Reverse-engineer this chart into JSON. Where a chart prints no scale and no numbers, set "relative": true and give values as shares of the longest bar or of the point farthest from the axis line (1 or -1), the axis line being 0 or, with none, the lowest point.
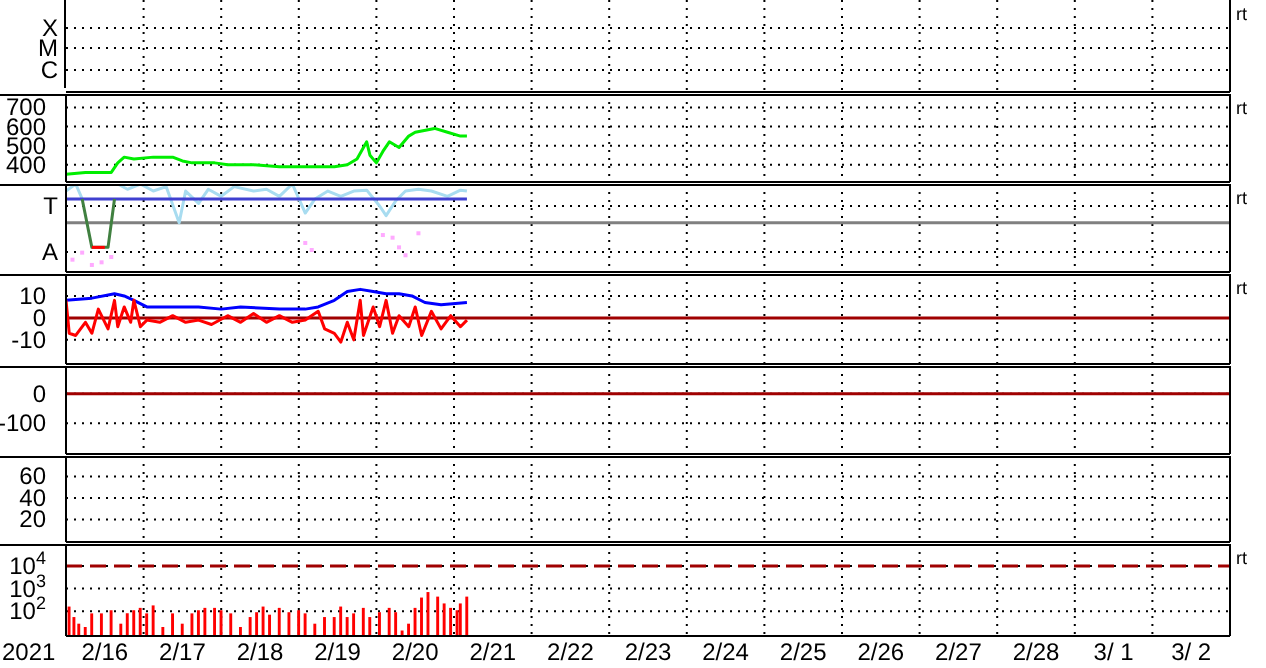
{
  "chart_data": [
    {
      "type": "other",
      "annotations": [
        "X",
        "M",
        "C",
        "rt"
      ]
    },
    {
      "type": "line",
      "tick_labels": "y",
      "grid": true,
      "marker": "none",
      "line_style": "solid",
      "annotations": [
        "rt"
      ],
      "xlim": [
        "2021-02-16",
        "2021-03-03"
      ],
      "xticks": [
        {
          "value": "2021-02-17",
          "label": null
        },
        {
          "value": "2021-02-18",
          "label": null
        },
        {
          "value": "2021-02-19",
          "label": null
        },
        {
          "value": "2021-02-20",
          "label": null
        },
        {
          "value": "2021-02-21",
          "label": null
        },
        {
          "value": "2021-02-22",
          "label": null
        },
        {
          "value": "2021-02-23",
          "label": null
        },
        {
          "value": "2021-02-24",
          "label": null
        },
        {
          "value": "2021-02-25",
          "label": null
        },
        {
          "value": "2021-02-26",
          "label": null
        },
        {
          "value": "2021-02-27",
          "label": null
        },
        {
          "value": "2021-02-28",
          "label": null
        },
        {
          "value": "2021-03-01",
          "label": null
        },
        {
          "value": "2021-03-02",
          "label": null
        }
      ],
      "ylim": [
        310,
        770
      ],
      "yticks": [
        400,
        500,
        600,
        700
      ],
      "series": [
        {
          "color": "#00ee00",
          "x": [
            "2021-02-16T00:00",
            "2021-02-16T06:00",
            "2021-02-16T14:00",
            "2021-02-16T16:00",
            "2021-02-16T18:00",
            "2021-02-16T21:00",
            "2021-02-17T03:00",
            "2021-02-17T09:00",
            "2021-02-17T12:00",
            "2021-02-17T15:00",
            "2021-02-17T22:00",
            "2021-02-18T02:00",
            "2021-02-18T10:00",
            "2021-02-18T18:00",
            "2021-02-19T02:00",
            "2021-02-19T11:00",
            "2021-02-19T15:00",
            "2021-02-19T18:00",
            "2021-02-19T21:00",
            "2021-02-19T22:00",
            "2021-02-20T00:00",
            "2021-02-20T02:00",
            "2021-02-20T04:00",
            "2021-02-20T07:00",
            "2021-02-20T10:00",
            "2021-02-20T12:00",
            "2021-02-20T18:00",
            "2021-02-20T22:00",
            "2021-02-21T02:00",
            "2021-02-21T04:00"
          ],
          "values": [
            350,
            360,
            360,
            410,
            440,
            430,
            440,
            440,
            420,
            410,
            410,
            400,
            400,
            390,
            390,
            390,
            400,
            430,
            520,
            450,
            410,
            470,
            520,
            490,
            550,
            570,
            590,
            570,
            550,
            550
          ]
        }
      ]
    },
    {
      "type": "line",
      "relative": true,
      "tick_labels": false,
      "grid": true,
      "marker": "none",
      "line_style": "solid",
      "annotations": [
        "T",
        "A",
        "rt"
      ],
      "xlim": [
        "2021-02-16",
        "2021-03-03"
      ],
      "xticks": [
        {
          "value": "2021-02-17",
          "label": null
        },
        {
          "value": "2021-02-18",
          "label": null
        },
        {
          "value": "2021-02-19",
          "label": null
        },
        {
          "value": "2021-02-20",
          "label": null
        },
        {
          "value": "2021-02-21",
          "label": null
        },
        {
          "value": "2021-02-22",
          "label": null
        },
        {
          "value": "2021-02-23",
          "label": null
        },
        {
          "value": "2021-02-24",
          "label": null
        },
        {
          "value": "2021-02-25",
          "label": null
        },
        {
          "value": "2021-02-26",
          "label": null
        },
        {
          "value": "2021-02-27",
          "label": null
        },
        {
          "value": "2021-02-28",
          "label": null
        },
        {
          "value": "2021-03-01",
          "label": null
        },
        {
          "value": "2021-03-02",
          "label": null
        }
      ],
      "ref_lines": [
        {
          "axis": "y",
          "value": 0.56,
          "color": "#808080"
        }
      ],
      "series": [
        {
          "color": "#a8dcf0",
          "x": [
            "2021-02-16T00:00",
            "2021-02-16T03:00",
            "2021-02-16T05:00",
            "2021-02-16T10:00",
            "2021-02-16T16:00",
            "2021-02-16T19:00",
            "2021-02-16T23:00",
            "2021-02-17T03:00",
            "2021-02-17T07:00",
            "2021-02-17T11:00",
            "2021-02-17T13:00",
            "2021-02-17T17:00",
            "2021-02-17T20:00",
            "2021-02-18T00:00",
            "2021-02-18T04:00",
            "2021-02-18T10:00",
            "2021-02-18T14:00",
            "2021-02-18T18:00",
            "2021-02-18T22:00",
            "2021-02-19T02:00",
            "2021-02-19T05:00",
            "2021-02-19T09:00",
            "2021-02-19T13:00",
            "2021-02-19T17:00",
            "2021-02-19T21:00",
            "2021-02-20T01:00",
            "2021-02-20T03:00",
            "2021-02-20T06:00",
            "2021-02-20T09:00",
            "2021-02-20T13:00",
            "2021-02-20T17:00",
            "2021-02-20T22:00",
            "2021-02-21T02:00",
            "2021-02-21T04:00"
          ],
          "values": [
            0.92,
            1,
            0.83,
            null,
            1,
            0.94,
            1,
            0.92,
            0.97,
            0.56,
            0.92,
            0.78,
            0.94,
            0.86,
            0.97,
            0.92,
            0.94,
            0.86,
            1,
            0.67,
            0.83,
            0.92,
            0.86,
            0.92,
            0.93,
            0.75,
            0.64,
            0.81,
            0.92,
            0.94,
            0.92,
            0.86,
            0.93,
            0.92
          ]
        },
        {
          "color": "#4040d0",
          "x": [
            "2021-02-16T00:00",
            "2021-02-21T04:00"
          ],
          "values": [
            0.83,
            0.83
          ]
        },
        {
          "color": "#408040",
          "x": [
            "2021-02-16T05:00",
            "2021-02-16T08:00",
            "2021-02-16T13:00",
            "2021-02-16T15:00"
          ],
          "values": [
            0.83,
            0.28,
            0.28,
            0.83
          ]
        },
        {
          "color": "#ff0000",
          "x": [
            "2021-02-16T08:00",
            "2021-02-16T12:00"
          ],
          "values": [
            0.28,
            0.28
          ]
        },
        {
          "type": "scatter",
          "marker": "square",
          "color": "#ffaaff",
          "x": [
            "2021-02-16T02:00",
            "2021-02-16T05:00",
            "2021-02-16T08:00",
            "2021-02-16T11:00",
            "2021-02-16T14:00",
            "2021-02-19T02:00",
            "2021-02-19T04:00",
            "2021-02-20T02:00",
            "2021-02-20T05:00",
            "2021-02-20T07:00",
            "2021-02-20T09:00",
            "2021-02-20T13:00"
          ],
          "values": [
            0.14,
            0.22,
            0.08,
            0.11,
            0.17,
            0.33,
            0.25,
            0.42,
            0.39,
            0.28,
            0.19,
            0.44
          ]
        }
      ]
    },
    {
      "type": "line",
      "tick_labels": "y",
      "grid": true,
      "marker": "none",
      "line_style": "solid",
      "annotations": [
        "rt"
      ],
      "xlim": [
        "2021-02-16",
        "2021-03-03"
      ],
      "xticks": [
        {
          "value": "2021-02-17",
          "label": null
        },
        {
          "value": "2021-02-18",
          "label": null
        },
        {
          "value": "2021-02-19",
          "label": null
        },
        {
          "value": "2021-02-20",
          "label": null
        },
        {
          "value": "2021-02-21",
          "label": null
        },
        {
          "value": "2021-02-22",
          "label": null
        },
        {
          "value": "2021-02-23",
          "label": null
        },
        {
          "value": "2021-02-24",
          "label": null
        },
        {
          "value": "2021-02-25",
          "label": null
        },
        {
          "value": "2021-02-26",
          "label": null
        },
        {
          "value": "2021-02-27",
          "label": null
        },
        {
          "value": "2021-02-28",
          "label": null
        },
        {
          "value": "2021-03-01",
          "label": null
        },
        {
          "value": "2021-03-02",
          "label": null
        }
      ],
      "ylim": [
        -21,
        20
      ],
      "yticks": [
        -10,
        0,
        10
      ],
      "ref_lines": [
        {
          "axis": "y",
          "value": 0,
          "color": "#a00000"
        }
      ],
      "series": [
        {
          "color": "#0000ff",
          "x": [
            "2021-02-16T00:00",
            "2021-02-16T08:00",
            "2021-02-16T15:00",
            "2021-02-16T18:00",
            "2021-02-16T21:00",
            "2021-02-17T01:00",
            "2021-02-17T05:00",
            "2021-02-17T17:00",
            "2021-02-18T00:00",
            "2021-02-18T06:00",
            "2021-02-18T18:00",
            "2021-02-19T02:00",
            "2021-02-19T06:00",
            "2021-02-19T11:00",
            "2021-02-19T15:00",
            "2021-02-19T19:00",
            "2021-02-19T23:00",
            "2021-02-20T03:00",
            "2021-02-20T07:00",
            "2021-02-20T11:00",
            "2021-02-20T15:00",
            "2021-02-20T20:00",
            "2021-02-21T04:00"
          ],
          "values": [
            8,
            9,
            11,
            10,
            8,
            5,
            5,
            5,
            4,
            5,
            4,
            4,
            5,
            8,
            12,
            13,
            12,
            11,
            11,
            10,
            7,
            6,
            7
          ]
        },
        {
          "color": "#ff0000",
          "x": [
            "2021-02-16T00:00",
            "2021-02-16T01:00",
            "2021-02-16T03:00",
            "2021-02-16T06:00",
            "2021-02-16T08:00",
            "2021-02-16T10:00",
            "2021-02-16T13:00",
            "2021-02-16T15:00",
            "2021-02-16T16:00",
            "2021-02-16T18:00",
            "2021-02-16T20:00",
            "2021-02-16T21:00",
            "2021-02-16T23:00",
            "2021-02-17T01:00",
            "2021-02-17T05:00",
            "2021-02-17T09:00",
            "2021-02-17T13:00",
            "2021-02-17T17:00",
            "2021-02-17T21:00",
            "2021-02-18T02:00",
            "2021-02-18T06:00",
            "2021-02-18T10:00",
            "2021-02-18T14:00",
            "2021-02-18T18:00",
            "2021-02-18T22:00",
            "2021-02-19T02:00",
            "2021-02-19T06:00",
            "2021-02-19T08:00",
            "2021-02-19T11:00",
            "2021-02-19T13:00",
            "2021-02-19T15:00",
            "2021-02-19T17:00",
            "2021-02-19T19:00",
            "2021-02-19T20:00",
            "2021-02-19T23:00",
            "2021-02-20T01:00",
            "2021-02-20T03:00",
            "2021-02-20T05:00",
            "2021-02-20T07:00",
            "2021-02-20T10:00",
            "2021-02-20T12:00",
            "2021-02-20T14:00",
            "2021-02-20T17:00",
            "2021-02-20T20:00",
            "2021-02-20T23:00",
            "2021-02-21T02:00",
            "2021-02-21T04:00"
          ],
          "values": [
            8,
            -7,
            -8,
            -2,
            -7,
            4,
            -5,
            8,
            -4,
            5,
            -2,
            8,
            -4,
            -1,
            -2,
            1,
            -2,
            -1,
            -3,
            1,
            -2,
            2,
            -2,
            1,
            -2,
            -1,
            3,
            -5,
            -7,
            -11,
            -2,
            -10,
            8,
            -8,
            5,
            -4,
            8,
            -7,
            1,
            -4,
            5,
            -8,
            3,
            -5,
            1,
            -4,
            -1
          ]
        }
      ]
    },
    {
      "type": "line",
      "tick_labels": "y",
      "grid": true,
      "xlim": [
        "2021-02-16",
        "2021-03-03"
      ],
      "xticks": [
        {
          "value": "2021-02-17",
          "label": null
        },
        {
          "value": "2021-02-18",
          "label": null
        },
        {
          "value": "2021-02-19",
          "label": null
        },
        {
          "value": "2021-02-20",
          "label": null
        },
        {
          "value": "2021-02-21",
          "label": null
        },
        {
          "value": "2021-02-22",
          "label": null
        },
        {
          "value": "2021-02-23",
          "label": null
        },
        {
          "value": "2021-02-24",
          "label": null
        },
        {
          "value": "2021-02-25",
          "label": null
        },
        {
          "value": "2021-02-26",
          "label": null
        },
        {
          "value": "2021-02-27",
          "label": null
        },
        {
          "value": "2021-02-28",
          "label": null
        },
        {
          "value": "2021-03-01",
          "label": null
        },
        {
          "value": "2021-03-02",
          "label": null
        }
      ],
      "ylim": [
        -205,
        95
      ],
      "yticks": [
        -100,
        0
      ],
      "ref_lines": [
        {
          "axis": "y",
          "value": 0,
          "color": "#a00000"
        }
      ]
    },
    {
      "type": "line",
      "tick_labels": "y",
      "grid": true,
      "xlim": [
        "2021-02-16",
        "2021-03-03"
      ],
      "xticks": [
        {
          "value": "2021-02-17",
          "label": null
        },
        {
          "value": "2021-02-18",
          "label": null
        },
        {
          "value": "2021-02-19",
          "label": null
        },
        {
          "value": "2021-02-20",
          "label": null
        },
        {
          "value": "2021-02-21",
          "label": null
        },
        {
          "value": "2021-02-22",
          "label": null
        },
        {
          "value": "2021-02-23",
          "label": null
        },
        {
          "value": "2021-02-24",
          "label": null
        },
        {
          "value": "2021-02-25",
          "label": null
        },
        {
          "value": "2021-02-26",
          "label": null
        },
        {
          "value": "2021-02-27",
          "label": null
        },
        {
          "value": "2021-02-28",
          "label": null
        },
        {
          "value": "2021-03-01",
          "label": null
        },
        {
          "value": "2021-03-02",
          "label": null
        }
      ],
      "ylim": [
        -1,
        79
      ],
      "yticks": [
        20,
        40,
        60
      ]
    },
    {
      "type": "bar",
      "grid": true,
      "log": "y",
      "xlabel": "2021",
      "annotations": [
        "rt"
      ],
      "xlim": [
        "2021-02-16",
        "2021-03-03"
      ],
      "xticks": [
        {
          "value": "2021-02-16T12:00",
          "label": "2/16"
        },
        {
          "value": "2021-02-17",
          "label": null
        },
        {
          "value": "2021-02-17T12:00",
          "label": "2/17"
        },
        {
          "value": "2021-02-18",
          "label": null
        },
        {
          "value": "2021-02-18T12:00",
          "label": "2/18"
        },
        {
          "value": "2021-02-19",
          "label": null
        },
        {
          "value": "2021-02-19T12:00",
          "label": "2/19"
        },
        {
          "value": "2021-02-20",
          "label": null
        },
        {
          "value": "2021-02-20T12:00",
          "label": "2/20"
        },
        {
          "value": "2021-02-21",
          "label": null
        },
        {
          "value": "2021-02-21T12:00",
          "label": "2/21"
        },
        {
          "value": "2021-02-22",
          "label": null
        },
        {
          "value": "2021-02-22T12:00",
          "label": "2/22"
        },
        {
          "value": "2021-02-23",
          "label": null
        },
        {
          "value": "2021-02-23T12:00",
          "label": "2/23"
        },
        {
          "value": "2021-02-24",
          "label": null
        },
        {
          "value": "2021-02-24T12:00",
          "label": "2/24"
        },
        {
          "value": "2021-02-25",
          "label": null
        },
        {
          "value": "2021-02-25T12:00",
          "label": "2/25"
        },
        {
          "value": "2021-02-26",
          "label": null
        },
        {
          "value": "2021-02-26T12:00",
          "label": "2/26"
        },
        {
          "value": "2021-02-27",
          "label": null
        },
        {
          "value": "2021-02-27T12:00",
          "label": "2/27"
        },
        {
          "value": "2021-02-28",
          "label": null
        },
        {
          "value": "2021-02-28T12:00",
          "label": "2/28"
        },
        {
          "value": "2021-03-01",
          "label": null
        },
        {
          "value": "2021-03-01T12:00",
          "label": "3/ 1"
        },
        {
          "value": "2021-03-02",
          "label": null
        },
        {
          "value": "2021-03-02T12:00",
          "label": "3/ 2"
        }
      ],
      "ylim": [
        8,
        93000
      ],
      "yticks": [
        {
          "value": 100,
          "label": "10$^{2}$"
        },
        {
          "value": 1000,
          "label": "10$^{3}$"
        },
        {
          "value": 10000,
          "label": "10$^{4}$"
        }
      ],
      "ref_lines": [
        {
          "axis": "y",
          "value": 10000,
          "color": "#a00000",
          "line_style": "dashed"
        }
      ],
      "series": [
        {
          "color": "#ff0000",
          "x": [
            "2021-02-16T01:00",
            "2021-02-16T02:30",
            "2021-02-16T04:00",
            "2021-02-16T06:00",
            "2021-02-16T08:00",
            "2021-02-16T11:00",
            "2021-02-16T14:00",
            "2021-02-16T17:00",
            "2021-02-16T19:00",
            "2021-02-16T21:00",
            "2021-02-16T23:00",
            "2021-02-17T01:00",
            "2021-02-17T03:00",
            "2021-02-17T06:00",
            "2021-02-17T09:00",
            "2021-02-17T12:00",
            "2021-02-17T15:00",
            "2021-02-17T17:00",
            "2021-02-17T19:00",
            "2021-02-17T22:00",
            "2021-02-18T00:00",
            "2021-02-18T03:00",
            "2021-02-18T06:00",
            "2021-02-18T09:00",
            "2021-02-18T11:00",
            "2021-02-18T13:00",
            "2021-02-18T15:00",
            "2021-02-18T18:00",
            "2021-02-18T21:00",
            "2021-02-19T00:00",
            "2021-02-19T02:00",
            "2021-02-19T05:00",
            "2021-02-19T08:00",
            "2021-02-19T11:00",
            "2021-02-19T13:00",
            "2021-02-19T15:00",
            "2021-02-19T17:00",
            "2021-02-19T20:00",
            "2021-02-19T22:00",
            "2021-02-20T01:00",
            "2021-02-20T04:00",
            "2021-02-20T06:00",
            "2021-02-20T08:00",
            "2021-02-20T10:00",
            "2021-02-20T12:00",
            "2021-02-20T14:00",
            "2021-02-20T16:00",
            "2021-02-20T19:00",
            "2021-02-20T21:00",
            "2021-02-20T23:00",
            "2021-02-21T01:00",
            "2021-02-21T02:00",
            "2021-02-21T04:00"
          ],
          "values": [
            160,
            55,
            28,
            20,
            80,
            80,
            110,
            28,
            80,
            110,
            140,
            80,
            180,
            20,
            80,
            28,
            80,
            110,
            140,
            140,
            110,
            80,
            20,
            55,
            90,
            160,
            70,
            140,
            90,
            110,
            80,
            28,
            55,
            55,
            160,
            55,
            80,
            140,
            55,
            90,
            140,
            90,
            14,
            28,
            140,
            400,
            700,
            440,
            220,
            140,
            110,
            220,
            440
          ]
        }
      ]
    }
  ]
}
